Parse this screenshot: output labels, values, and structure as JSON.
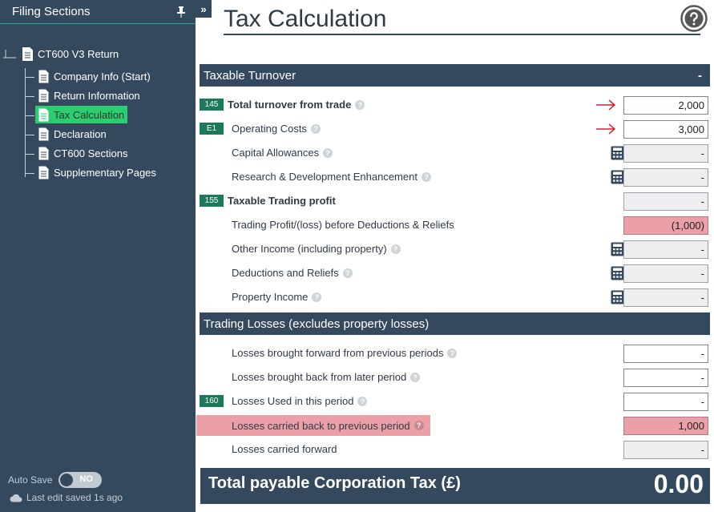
{
  "sidebar": {
    "title": "Filing Sections",
    "root": "CT600 V3 Return",
    "items": [
      {
        "label": "Company Info (Start)"
      },
      {
        "label": "Return Information"
      },
      {
        "label": "Tax Calculation",
        "selected": true
      },
      {
        "label": "Declaration"
      },
      {
        "label": "CT600 Sections"
      },
      {
        "label": "Supplementary Pages"
      }
    ],
    "autosave_label": "Auto Save",
    "autosave_state": "NO",
    "last_saved": "Last edit saved 1s ago"
  },
  "collapse_label": "»",
  "page": {
    "title": "Tax Calculation",
    "help_icon": "question-circle-icon"
  },
  "sections": {
    "turnover": {
      "title": "Taxable Turnover",
      "toggle": "-"
    },
    "losses": {
      "title": "Trading Losses (excludes property losses)"
    }
  },
  "rows": {
    "r0": {
      "badge": "145",
      "label": "Total turnover from trade",
      "value": "2,000"
    },
    "r1": {
      "badge": "E1",
      "label": "Operating Costs",
      "value": "3,000"
    },
    "r2": {
      "label": "Capital Allowances",
      "value": "-"
    },
    "r3": {
      "label": "Research & Development Enhancement",
      "value": "-"
    },
    "r4": {
      "badge": "155",
      "label": "Taxable Trading profit",
      "value": "-"
    },
    "r5": {
      "label": "Trading Profit/(loss) before Deductions & Reliefs",
      "value": "(1,000)"
    },
    "r6": {
      "label": "Other Income (including property)",
      "value": "-"
    },
    "r7": {
      "label": "Deductions and Reliefs",
      "value": "-"
    },
    "r8": {
      "label": "Property Income",
      "value": "-"
    },
    "r9": {
      "label": "Losses brought forward from previous periods",
      "value": "-"
    },
    "r10": {
      "label": "Losses brought back from later period",
      "value": "-"
    },
    "r11": {
      "badge": "160",
      "label": "Losses Used in this period",
      "value": "-"
    },
    "r12": {
      "label": "Losses carried back to previous period",
      "value": "1,000"
    },
    "r13": {
      "label": "Losses carried forward",
      "value": "-"
    }
  },
  "total": {
    "label": "Total payable Corporation Tax (£)",
    "value": "0.00"
  },
  "colors": {
    "sidebar_bg": "#34495e",
    "selected_bg": "#2ecc71",
    "badge_bg": "#1a7a5a",
    "highlight_pink": "#eba0a8",
    "arrow_red": "#d9232d"
  }
}
